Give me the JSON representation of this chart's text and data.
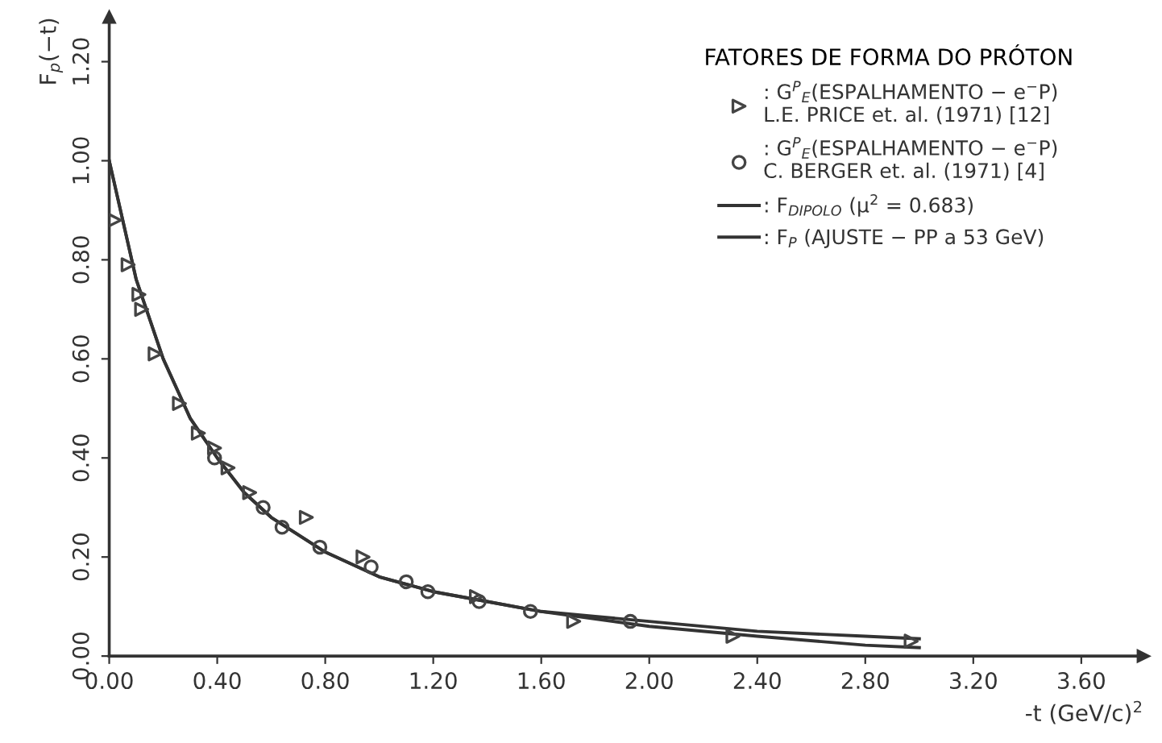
{
  "chart_data": {
    "type": "scatter",
    "xlabel": "-t (GeV/c)$^{2}$",
    "ylabel": "F$_{p}$(−t)",
    "legend_title": "FATORES DE FORMA DO PRÓTON",
    "legend": "top right",
    "grid": false,
    "xlim": [
      0,
      3.83
    ],
    "ylim": [
      0,
      1.29
    ],
    "xticks": [
      {
        "value": 0,
        "label": "0.00"
      },
      {
        "value": 0.4,
        "label": "0.40"
      },
      {
        "value": 0.8,
        "label": "0.80"
      },
      {
        "value": 1.2,
        "label": "1.20"
      },
      {
        "value": 1.6,
        "label": "1.60"
      },
      {
        "value": 2.0,
        "label": "2.00"
      },
      {
        "value": 2.4,
        "label": "2.40"
      },
      {
        "value": 2.8,
        "label": "2.80"
      },
      {
        "value": 3.2,
        "label": "3.20"
      },
      {
        "value": 3.6,
        "label": "3.60"
      }
    ],
    "yticks": [
      {
        "value": 0,
        "label": "0.00"
      },
      {
        "value": 0.2,
        "label": "0.20"
      },
      {
        "value": 0.4,
        "label": "0.40"
      },
      {
        "value": 0.6,
        "label": "0.60"
      },
      {
        "value": 0.8,
        "label": "0.80"
      },
      {
        "value": 1.0,
        "label": "1.00"
      },
      {
        "value": 1.2,
        "label": "1.20"
      }
    ],
    "series": [
      {
        "name": ": G$^{P}$$_{E}$(ESPALHAMENTO − e$^{−}$P)\nL.E. PRICE et. al. (1971) [12]",
        "marker": "triangle",
        "color": "#444444",
        "x": [
          0.02,
          0.07,
          0.11,
          0.12,
          0.17,
          0.26,
          0.33,
          0.39,
          0.44,
          0.52,
          0.73,
          0.94,
          1.36,
          1.72,
          2.31,
          2.97
        ],
        "values": [
          0.88,
          0.79,
          0.73,
          0.7,
          0.61,
          0.51,
          0.45,
          0.42,
          0.38,
          0.33,
          0.28,
          0.2,
          0.12,
          0.07,
          0.04,
          0.03
        ]
      },
      {
        "name": ": G$^{P}$$_{E}$(ESPALHAMENTO − e$^{−}$P)\nC. BERGER et. al. (1971) [4]",
        "marker": "circle",
        "color": "#444444",
        "x": [
          0.39,
          0.57,
          0.64,
          0.78,
          0.97,
          1.1,
          1.18,
          1.37,
          1.56,
          1.93
        ],
        "values": [
          0.4,
          0.3,
          0.26,
          0.22,
          0.18,
          0.15,
          0.13,
          0.11,
          0.09,
          0.07
        ]
      },
      {
        "name": ": F$_{DIPOLO}$ (μ$^{2}$ = 0.683)",
        "type": "line",
        "marker": "none",
        "line_style": "solid",
        "color": "#333333",
        "x": [
          0,
          0.1,
          0.2,
          0.3,
          0.4,
          0.5,
          0.6,
          0.8,
          1.0,
          1.2,
          1.4,
          1.6,
          2.0,
          2.4,
          2.8,
          3.0
        ],
        "values": [
          1.0,
          0.76,
          0.6,
          0.48,
          0.4,
          0.33,
          0.28,
          0.21,
          0.16,
          0.13,
          0.11,
          0.09,
          0.07,
          0.05,
          0.04,
          0.035
        ]
      },
      {
        "name": ": F$_{P}$ (AJUSTE − PP a 53 GeV)",
        "type": "line",
        "marker": "none",
        "line_style": "solid",
        "color": "#333333",
        "x": [
          0,
          0.1,
          0.2,
          0.3,
          0.4,
          0.5,
          0.6,
          0.8,
          1.0,
          1.2,
          1.4,
          1.6,
          2.0,
          2.4,
          2.8,
          3.0
        ],
        "values": [
          1.0,
          0.76,
          0.6,
          0.48,
          0.4,
          0.33,
          0.28,
          0.21,
          0.16,
          0.13,
          0.11,
          0.09,
          0.06,
          0.04,
          0.022,
          0.017
        ]
      }
    ]
  }
}
